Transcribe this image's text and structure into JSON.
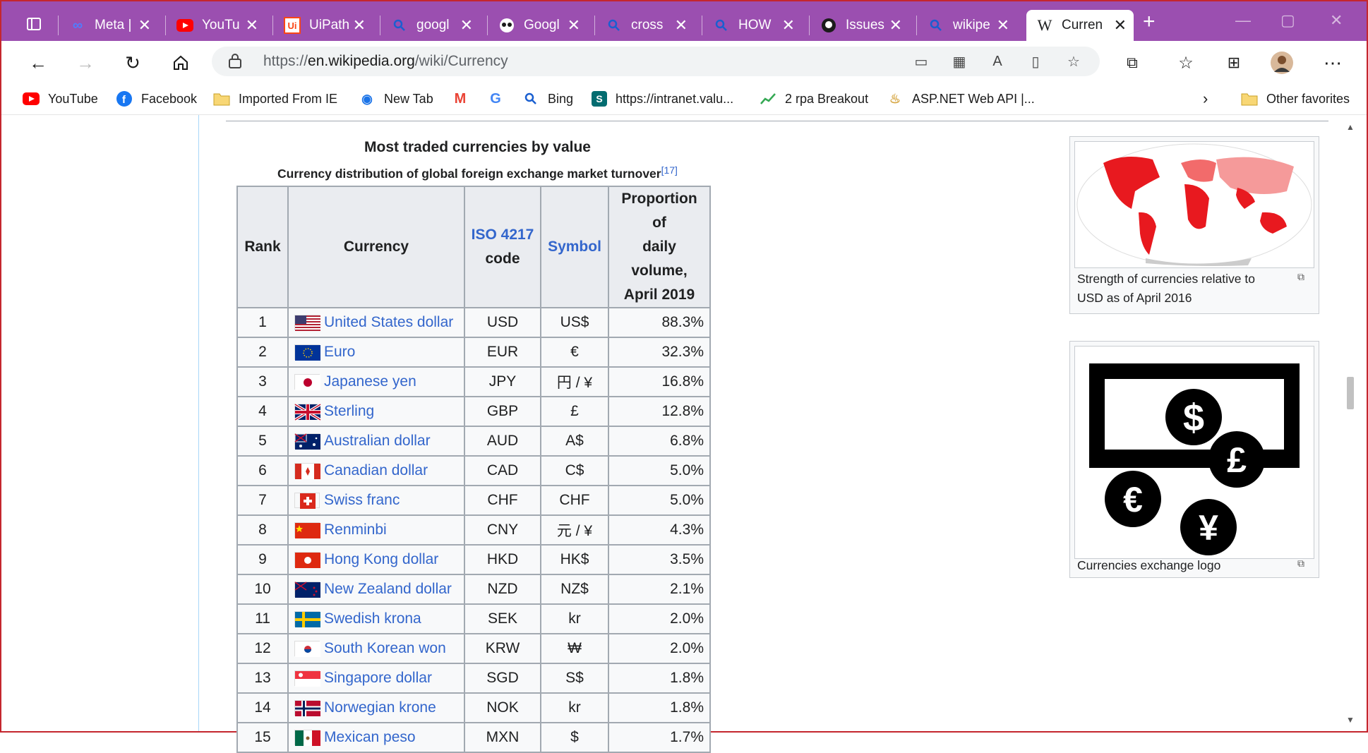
{
  "tabs": [
    {
      "title": "Meta |",
      "icon": "meta-icon",
      "color": "#4267f5"
    },
    {
      "title": "YouTu",
      "icon": "youtube-icon",
      "color": "#ff0000"
    },
    {
      "title": "UiPath",
      "icon": "uipath-icon",
      "color": "#fa4616"
    },
    {
      "title": "googl",
      "icon": "search-icon",
      "color": "#1a5fd0"
    },
    {
      "title": "Googl",
      "icon": "owl-icon",
      "color": "#1b1b1b"
    },
    {
      "title": "cross",
      "icon": "search-icon",
      "color": "#1a5fd0"
    },
    {
      "title": "HOW",
      "icon": "search-icon",
      "color": "#1a5fd0"
    },
    {
      "title": "Issues",
      "icon": "github-icon",
      "color": "#1b1b1b"
    },
    {
      "title": "wikipe",
      "icon": "search-icon",
      "color": "#1a5fd0"
    },
    {
      "title": "Curren",
      "icon": "wikipedia-icon",
      "color": "#1b1b1b"
    }
  ],
  "address_bar": {
    "prefix": "https://",
    "domain": "en.wikipedia.org",
    "path": "/wiki/Currency"
  },
  "bookmarks": [
    {
      "label": "YouTube",
      "icon": "youtube-icon"
    },
    {
      "label": "Facebook",
      "icon": "facebook-icon"
    },
    {
      "label": "Imported From IE",
      "icon": "folder-icon"
    },
    {
      "label": "New Tab",
      "icon": "wifi-icon"
    },
    {
      "label": "",
      "icon": "gmail-icon"
    },
    {
      "label": "",
      "icon": "google-icon"
    },
    {
      "label": "Bing",
      "icon": "search-icon"
    },
    {
      "label": "https://intranet.valu...",
      "icon": "sharepoint-icon"
    },
    {
      "label": "2 rpa Breakout",
      "icon": "chart-icon"
    },
    {
      "label": "ASP.NET Web API |...",
      "icon": "aspnet-icon"
    }
  ],
  "other_favorites": "Other favorites",
  "table": {
    "title": "Most traded currencies by value",
    "subtitle": "Currency distribution of global foreign exchange market turnover",
    "ref": "[17]",
    "headers": {
      "rank": "Rank",
      "currency": "Currency",
      "iso_line1": "ISO 4217",
      "iso_line2": "code",
      "symbol": "Symbol",
      "prop_line1": "Proportion of",
      "prop_line2": "daily volume,",
      "prop_line3": "April 2019"
    },
    "rows": [
      {
        "rank": "1",
        "currency": "United States dollar",
        "iso": "USD",
        "symbol": "US$",
        "prop": "88.3%",
        "flag": "us"
      },
      {
        "rank": "2",
        "currency": "Euro",
        "iso": "EUR",
        "symbol": "€",
        "prop": "32.3%",
        "flag": "eu"
      },
      {
        "rank": "3",
        "currency": "Japanese yen",
        "iso": "JPY",
        "symbol": "円 / ¥",
        "prop": "16.8%",
        "flag": "jp"
      },
      {
        "rank": "4",
        "currency": "Sterling",
        "iso": "GBP",
        "symbol": "£",
        "prop": "12.8%",
        "flag": "gb"
      },
      {
        "rank": "5",
        "currency": "Australian dollar",
        "iso": "AUD",
        "symbol": "A$",
        "prop": "6.8%",
        "flag": "au"
      },
      {
        "rank": "6",
        "currency": "Canadian dollar",
        "iso": "CAD",
        "symbol": "C$",
        "prop": "5.0%",
        "flag": "ca"
      },
      {
        "rank": "7",
        "currency": "Swiss franc",
        "iso": "CHF",
        "symbol": "CHF",
        "prop": "5.0%",
        "flag": "ch"
      },
      {
        "rank": "8",
        "currency": "Renminbi",
        "iso": "CNY",
        "symbol": "元 / ¥",
        "prop": "4.3%",
        "flag": "cn"
      },
      {
        "rank": "9",
        "currency": "Hong Kong dollar",
        "iso": "HKD",
        "symbol": "HK$",
        "prop": "3.5%",
        "flag": "hk"
      },
      {
        "rank": "10",
        "currency": "New Zealand dollar",
        "iso": "NZD",
        "symbol": "NZ$",
        "prop": "2.1%",
        "flag": "nz"
      },
      {
        "rank": "11",
        "currency": "Swedish krona",
        "iso": "SEK",
        "symbol": "kr",
        "prop": "2.0%",
        "flag": "se"
      },
      {
        "rank": "12",
        "currency": "South Korean won",
        "iso": "KRW",
        "symbol": "₩",
        "prop": "2.0%",
        "flag": "kr"
      },
      {
        "rank": "13",
        "currency": "Singapore dollar",
        "iso": "SGD",
        "symbol": "S$",
        "prop": "1.8%",
        "flag": "sg"
      },
      {
        "rank": "14",
        "currency": "Norwegian krone",
        "iso": "NOK",
        "symbol": "kr",
        "prop": "1.8%",
        "flag": "no"
      },
      {
        "rank": "15",
        "currency": "Mexican peso",
        "iso": "MXN",
        "symbol": "$",
        "prop": "1.7%",
        "flag": "mx"
      }
    ]
  },
  "figures": [
    {
      "caption_line1": "Strength of currencies relative to",
      "caption_line2": "USD as of April 2016"
    },
    {
      "caption_line1": "Currencies exchange logo",
      "caption_line2": ""
    }
  ],
  "colors": {
    "tab_strip": "#9b4fb0",
    "link": "#3366cc",
    "frame_border": "#c4262e"
  }
}
